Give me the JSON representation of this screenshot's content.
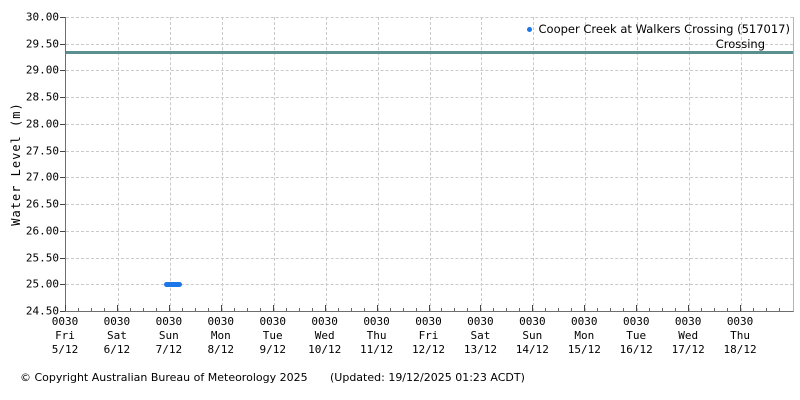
{
  "chart_data": {
    "type": "scatter",
    "title": "",
    "xlabel": "",
    "ylabel": "Water Level (m)",
    "ylim": [
      24.5,
      30.0
    ],
    "y_tick_step": 0.5,
    "y_tick_labels": [
      "30.00",
      "29.50",
      "29.00",
      "28.50",
      "28.00",
      "27.50",
      "27.00",
      "26.50",
      "26.00",
      "25.50",
      "25.00",
      "24.50"
    ],
    "x_ticks": [
      {
        "time": "0030",
        "day": "Fri",
        "date": "5/12"
      },
      {
        "time": "0030",
        "day": "Sat",
        "date": "6/12"
      },
      {
        "time": "0030",
        "day": "Sun",
        "date": "7/12"
      },
      {
        "time": "0030",
        "day": "Mon",
        "date": "8/12"
      },
      {
        "time": "0030",
        "day": "Tue",
        "date": "9/12"
      },
      {
        "time": "0030",
        "day": "Wed",
        "date": "10/12"
      },
      {
        "time": "0030",
        "day": "Thu",
        "date": "11/12"
      },
      {
        "time": "0030",
        "day": "Fri",
        "date": "12/12"
      },
      {
        "time": "0030",
        "day": "Sat",
        "date": "13/12"
      },
      {
        "time": "0030",
        "day": "Sun",
        "date": "14/12"
      },
      {
        "time": "0030",
        "day": "Mon",
        "date": "15/12"
      },
      {
        "time": "0030",
        "day": "Tue",
        "date": "16/12"
      },
      {
        "time": "0030",
        "day": "Wed",
        "date": "17/12"
      },
      {
        "time": "0030",
        "day": "Thu",
        "date": "18/12"
      }
    ],
    "grid": "dashed",
    "grid_color": "#c9c9c9",
    "axis_color": "#6e6e6e",
    "legend": {
      "position": "top-right",
      "entries": [
        {
          "label": "Cooper Creek at Walkers Crossing (517017)",
          "marker": "dot",
          "color": "#1c76e8"
        }
      ]
    },
    "reference_line": {
      "label": "Crossing",
      "value": 29.34,
      "color": "#5c8f8f"
    },
    "series": [
      {
        "name": "Cooper Creek at Walkers Crossing (517017)",
        "color": "#1c76e8",
        "marker": "dot",
        "value_m": 25.0,
        "start_day_offset": 1.885,
        "end_day_offset": 2.235,
        "points": [
          {
            "x": "6/12 ~21:50",
            "y": 25.0
          },
          {
            "x": "7/12 ~06:10",
            "y": 25.0
          }
        ]
      }
    ]
  },
  "footer": {
    "copyright": "© Copyright Australian Bureau of Meteorology 2025",
    "updated": "(Updated: 19/12/2025 01:23 ACDT)"
  }
}
